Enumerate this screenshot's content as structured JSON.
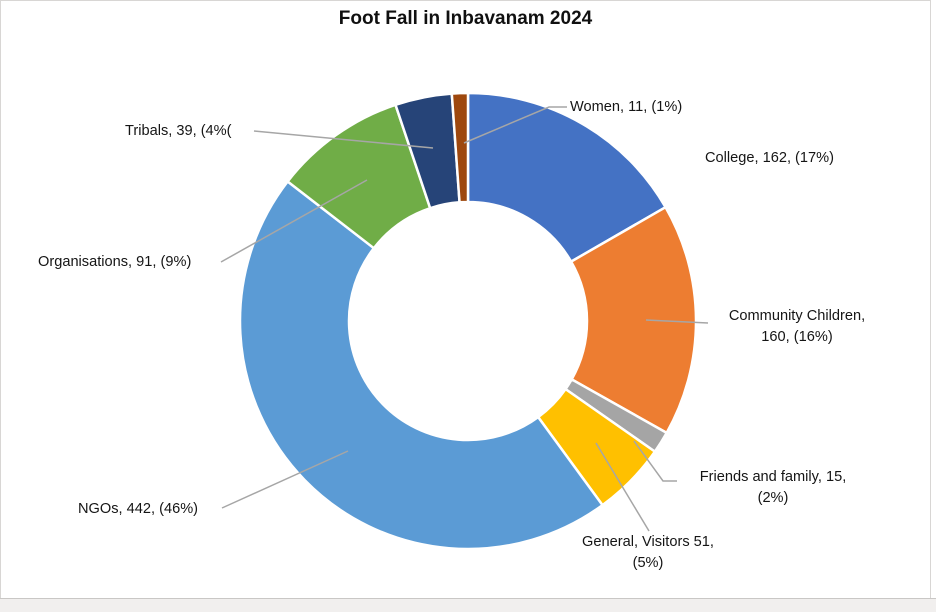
{
  "chart_data": {
    "type": "pie",
    "subtype": "donut",
    "title": "Foot Fall in Inbavanam 2024",
    "legend": "none",
    "hole_ratio": 0.52,
    "leader_line_color": "#a6a6a6",
    "slice_border_color": "#ffffff",
    "slices": [
      {
        "id": "college",
        "category": "College",
        "value": 162,
        "percent": "17%",
        "color": "#4472C4",
        "label_text": "College, 162, (17%)"
      },
      {
        "id": "community-children",
        "category": "Community Children",
        "value": 160,
        "percent": "16%",
        "color": "#ED7D31",
        "label_text": "Community Children,\n160, (16%)"
      },
      {
        "id": "friends-and-family",
        "category": "Friends and family",
        "value": 15,
        "percent": "2%",
        "color": "#A5A5A5",
        "label_text": "Friends and family, 15,\n(2%)"
      },
      {
        "id": "general-visitors",
        "category": "General, Visitors",
        "value": 51,
        "percent": "5%",
        "color": "#FFC000",
        "label_text": "General, Visitors 51,\n(5%)"
      },
      {
        "id": "ngos",
        "category": "NGOs",
        "value": 442,
        "percent": "46%",
        "color": "#5B9BD5",
        "label_text": "NGOs, 442, (46%)"
      },
      {
        "id": "organisations",
        "category": "Organisations",
        "value": 91,
        "percent": "9%",
        "color": "#70AD47",
        "label_text": "Organisations, 91, (9%)"
      },
      {
        "id": "tribals",
        "category": "Tribals",
        "value": 39,
        "percent": "4%",
        "color": "#264478",
        "label_text": "Tribals, 39, (4%("
      },
      {
        "id": "women",
        "category": "Women",
        "value": 11,
        "percent": "1%",
        "color": "#9E480E",
        "label_text": "Women, 11, (1%)"
      }
    ]
  }
}
